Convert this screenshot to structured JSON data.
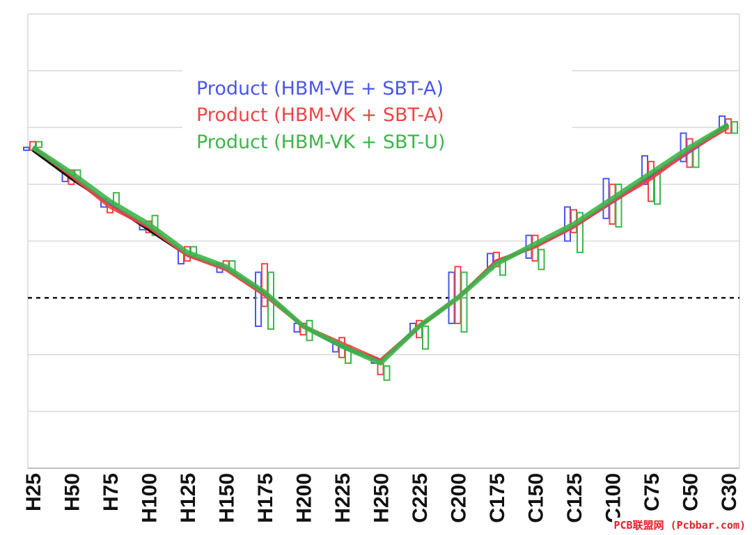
{
  "chart_data": {
    "type": "line",
    "title": "",
    "xlabel": "",
    "ylabel": "",
    "categories": [
      "H25",
      "H50",
      "H75",
      "H100",
      "H125",
      "H150",
      "H175",
      "H200",
      "H225",
      "H250",
      "C225",
      "C200",
      "C175",
      "C150",
      "C125",
      "C100",
      "C75",
      "C50",
      "C30"
    ],
    "ylim": [
      -3,
      5
    ],
    "grid": true,
    "zero_line": "dashed",
    "legend_position": "top-center",
    "reference": {
      "color": "#111111",
      "values": [
        2.6,
        2.1,
        1.65,
        1.2,
        0.75,
        0.52,
        0.08,
        -0.5,
        -0.85,
        -1.1,
        -0.5,
        0.0,
        0.65,
        0.9,
        1.25,
        1.7,
        2.15,
        2.6,
        3.05
      ]
    },
    "series": [
      {
        "name": "Product (HBM-VE + SBT-A)",
        "color": "#4a55ee",
        "values": [
          2.65,
          2.15,
          1.65,
          1.25,
          0.75,
          0.52,
          0.05,
          -0.5,
          -0.87,
          -1.12,
          -0.52,
          0.0,
          0.63,
          0.9,
          1.25,
          1.68,
          2.12,
          2.57,
          3.02
        ],
        "boxes": [
          [
            2.6,
            2.65
          ],
          [
            2.05,
            2.2
          ],
          [
            1.6,
            1.75
          ],
          [
            1.2,
            1.3
          ],
          [
            0.6,
            0.85
          ],
          [
            0.45,
            0.6
          ],
          [
            -0.5,
            0.45
          ],
          [
            -0.6,
            -0.45
          ],
          [
            -0.95,
            -0.8
          ],
          [
            -1.15,
            -1.05
          ],
          [
            -0.6,
            -0.45
          ],
          [
            -0.45,
            0.45
          ],
          [
            0.5,
            0.78
          ],
          [
            0.7,
            1.1
          ],
          [
            1.0,
            1.6
          ],
          [
            1.4,
            2.1
          ],
          [
            2.0,
            2.5
          ],
          [
            2.4,
            2.9
          ],
          [
            3.0,
            3.2
          ]
        ]
      },
      {
        "name": "Product (HBM-VK + SBT-A)",
        "color": "#ef4444",
        "values": [
          2.65,
          2.15,
          1.6,
          1.25,
          0.75,
          0.5,
          0.05,
          -0.5,
          -0.8,
          -1.1,
          -0.5,
          0.0,
          0.65,
          0.9,
          1.25,
          1.7,
          2.1,
          2.6,
          3.0
        ],
        "boxes": [
          [
            2.6,
            2.75
          ],
          [
            2.0,
            2.25
          ],
          [
            1.5,
            1.7
          ],
          [
            1.15,
            1.35
          ],
          [
            0.65,
            0.9
          ],
          [
            0.5,
            0.65
          ],
          [
            -0.15,
            0.6
          ],
          [
            -0.65,
            -0.45
          ],
          [
            -1.05,
            -0.7
          ],
          [
            -1.35,
            -1.15
          ],
          [
            -0.7,
            -0.4
          ],
          [
            -0.45,
            0.55
          ],
          [
            0.55,
            0.8
          ],
          [
            0.65,
            1.1
          ],
          [
            1.15,
            1.55
          ],
          [
            1.3,
            2.0
          ],
          [
            1.7,
            2.4
          ],
          [
            2.3,
            2.8
          ],
          [
            2.9,
            3.15
          ]
        ]
      },
      {
        "name": "Product (HBM-VK + SBT-U)",
        "color": "#3db54a",
        "values": [
          2.65,
          2.2,
          1.7,
          1.3,
          0.8,
          0.55,
          0.1,
          -0.5,
          -0.85,
          -1.15,
          -0.5,
          0.0,
          0.6,
          0.95,
          1.3,
          1.75,
          2.2,
          2.65,
          3.05
        ],
        "boxes": [
          [
            2.65,
            2.75
          ],
          [
            2.1,
            2.25
          ],
          [
            1.65,
            1.85
          ],
          [
            1.1,
            1.45
          ],
          [
            0.75,
            0.9
          ],
          [
            0.45,
            0.65
          ],
          [
            -0.55,
            0.45
          ],
          [
            -0.75,
            -0.4
          ],
          [
            -1.15,
            -0.85
          ],
          [
            -1.45,
            -1.2
          ],
          [
            -0.9,
            -0.5
          ],
          [
            -0.6,
            0.45
          ],
          [
            0.4,
            0.65
          ],
          [
            0.5,
            0.85
          ],
          [
            0.8,
            1.5
          ],
          [
            1.25,
            2.0
          ],
          [
            1.65,
            2.25
          ],
          [
            2.3,
            2.65
          ],
          [
            2.9,
            3.1
          ]
        ]
      }
    ]
  },
  "watermark": "PCB联盟网 (Pcbbar.com)"
}
